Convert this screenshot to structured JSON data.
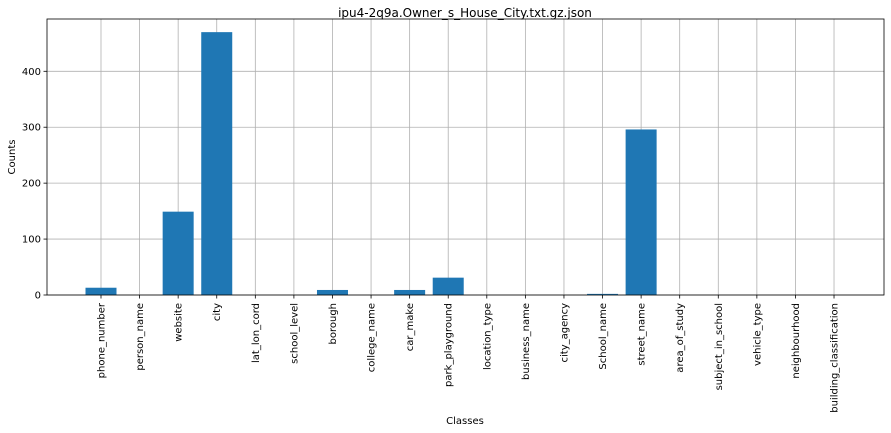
{
  "chart_data": {
    "type": "bar",
    "title": "ipu4-2q9a.Owner_s_House_City.txt.gz.json",
    "xlabel": "Classes",
    "ylabel": "Counts",
    "categories": [
      "phone_number",
      "person_name",
      "website",
      "city",
      "lat_lon_cord",
      "school_level",
      "borough",
      "college_name",
      "car_make",
      "park_playground",
      "location_type",
      "business_name",
      "city_agency",
      "School_name",
      "street_name",
      "area_of_study",
      "subject_in_school",
      "vehicle_type",
      "neighbourhood",
      "building_classification"
    ],
    "values": [
      13,
      0,
      149,
      470,
      0,
      0,
      9,
      0,
      9,
      31,
      0,
      0,
      0,
      2,
      296,
      0,
      0,
      0,
      0,
      0
    ],
    "yticks": [
      0,
      100,
      200,
      300,
      400
    ],
    "ylim": [
      0,
      493.5
    ],
    "grid": true,
    "bar_color": "#1f77b4"
  }
}
